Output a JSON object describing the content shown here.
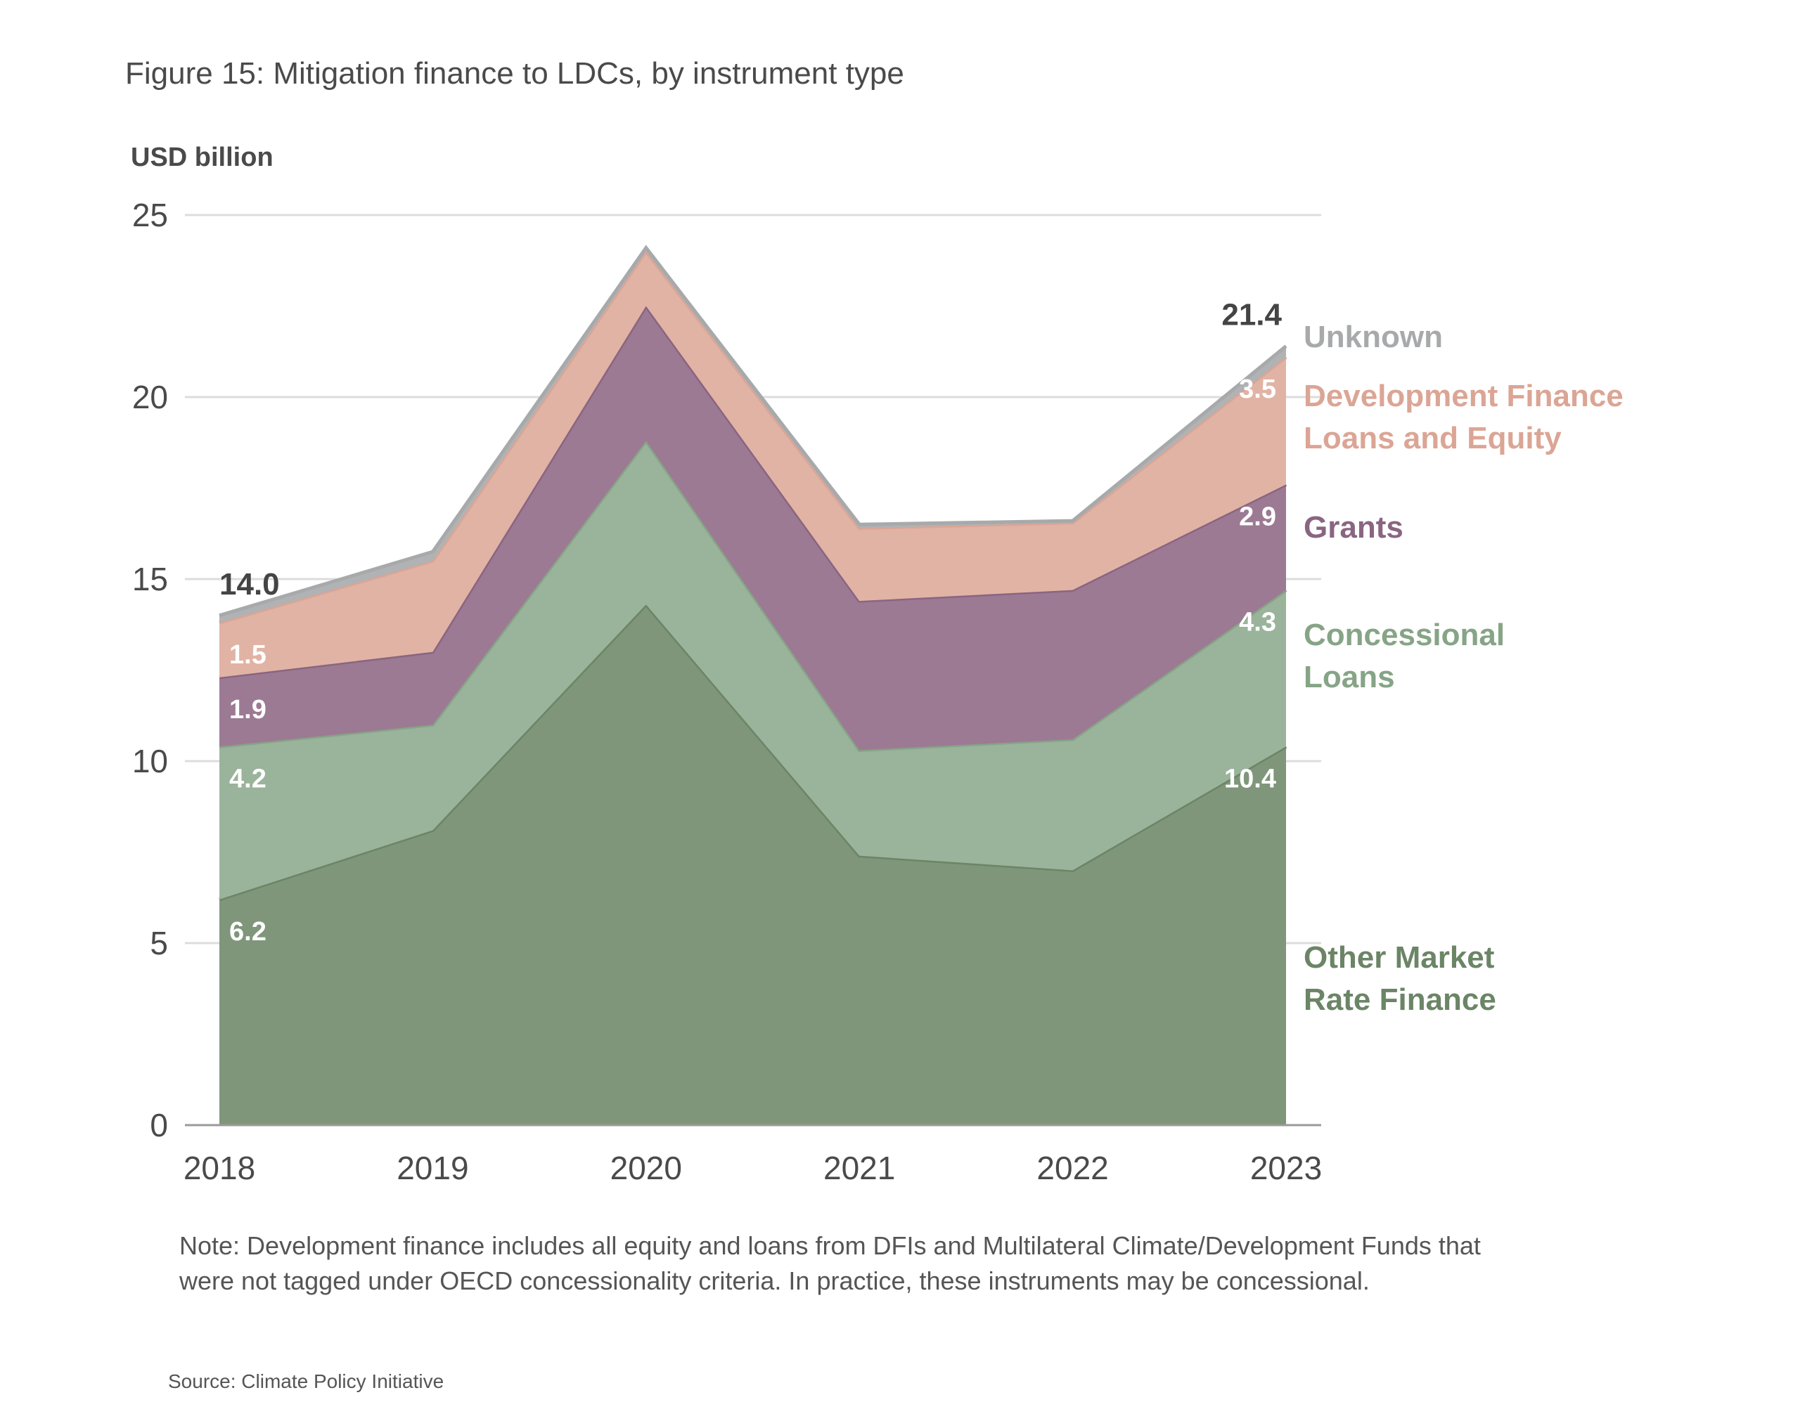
{
  "figure": {
    "title": "Figure 15: Mitigation finance to LDCs, by instrument type",
    "note": "Note: Development finance includes all equity and loans from DFIs and Multilateral Climate/Development Funds that were not tagged under OECD concessionality criteria. In practice, these instruments may be concessional.",
    "source": "Source: Climate Policy Initiative"
  },
  "chart_data": {
    "type": "area",
    "stacked": true,
    "title": "Figure 15: Mitigation finance to LDCs, by instrument type",
    "xlabel": "",
    "ylabel": "USD billion",
    "ylim": [
      0,
      25
    ],
    "yticks": [
      0,
      5,
      10,
      15,
      20,
      25
    ],
    "grid": true,
    "legend_placement": "right",
    "categories": [
      "2018",
      "2019",
      "2020",
      "2021",
      "2022",
      "2023"
    ],
    "series": [
      {
        "name": "Other Market Rate Finance",
        "legend_lines": [
          "Other Market",
          "Rate Finance"
        ],
        "color": "#7f967a",
        "line_color": "#6b8566",
        "text_color": "#6b8566",
        "values": [
          6.2,
          8.1,
          14.3,
          7.4,
          7.0,
          10.4
        ]
      },
      {
        "name": "Concessional Loans",
        "legend_lines": [
          "Concessional",
          "Loans"
        ],
        "color": "#9ab39b",
        "line_color": "#86a486",
        "text_color": "#86a486",
        "values": [
          4.2,
          2.9,
          4.5,
          2.9,
          3.6,
          4.3
        ]
      },
      {
        "name": "Grants",
        "legend_lines": [
          "Grants"
        ],
        "color": "#9c7a93",
        "line_color": "#8a6582",
        "text_color": "#8a6582",
        "values": [
          1.9,
          2.0,
          3.7,
          4.1,
          4.1,
          2.9
        ]
      },
      {
        "name": "Development Finance Loans and Equity",
        "legend_lines": [
          "Development Finance",
          "Loans and Equity"
        ],
        "color": "#e1b3a4",
        "line_color": "#dba595",
        "text_color": "#dba595",
        "values": [
          1.5,
          2.5,
          1.5,
          2.0,
          1.85,
          3.5
        ]
      },
      {
        "name": "Unknown",
        "legend_lines": [
          "Unknown"
        ],
        "color": "#b1b2b3",
        "line_color": "#a7a9aa",
        "text_color": "#a7a9aa",
        "values": [
          0.2,
          0.25,
          0.1,
          0.1,
          0.05,
          0.3
        ]
      }
    ],
    "data_labels": [
      {
        "series": 0,
        "category": "2018",
        "text": "6.2"
      },
      {
        "series": 1,
        "category": "2018",
        "text": "4.2"
      },
      {
        "series": 2,
        "category": "2018",
        "text": "1.9"
      },
      {
        "series": 3,
        "category": "2018",
        "text": "1.5"
      },
      {
        "series": 0,
        "category": "2023",
        "text": "10.4"
      },
      {
        "series": 1,
        "category": "2023",
        "text": "4.3"
      },
      {
        "series": 2,
        "category": "2023",
        "text": "2.9"
      },
      {
        "series": 3,
        "category": "2023",
        "text": "3.5"
      }
    ],
    "totals": [
      {
        "category": "2018",
        "text": "14.0"
      },
      {
        "category": "2023",
        "text": "21.4"
      }
    ]
  }
}
